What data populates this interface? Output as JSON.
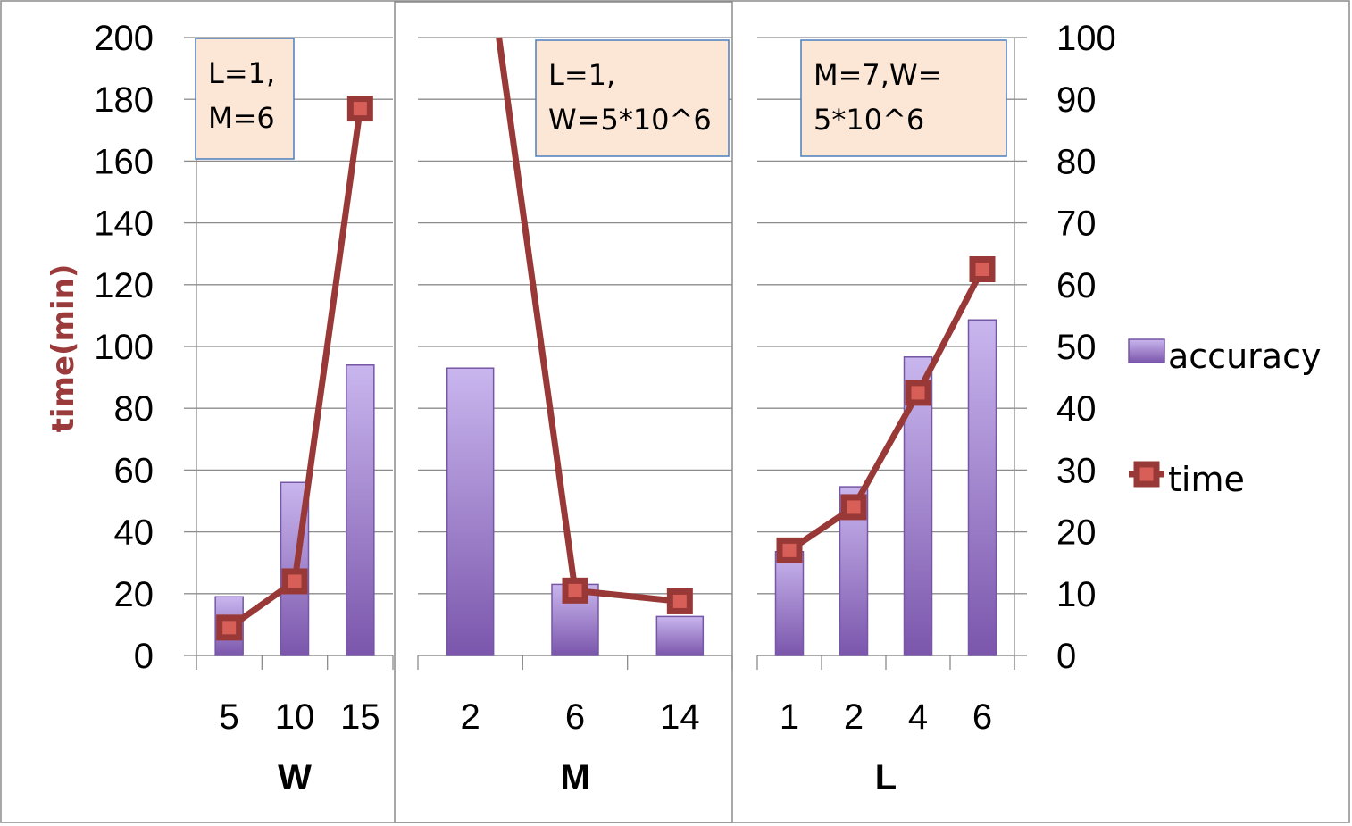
{
  "colors": {
    "bar_top": "#c9b6ee",
    "bar_bottom": "#7b56ac",
    "bar_stroke": "#7557a5",
    "line": "#983937",
    "marker_fill": "#d85f58",
    "annotation_fill": "#fce7d7",
    "annotation_stroke": "#4a7ebb",
    "ylabel": "#9b3a3a"
  },
  "chart_data": [
    {
      "type": "bar+line",
      "xlabel": "W",
      "categories": [
        "5",
        "10",
        "15"
      ],
      "annotation": [
        "L=1,",
        "M=6"
      ],
      "series": [
        {
          "name": "accuracy",
          "type": "bar",
          "axis": "right",
          "values": [
            9.5,
            28,
            47
          ]
        },
        {
          "name": "time",
          "type": "line",
          "axis": "left",
          "values": [
            9,
            24,
            177
          ]
        }
      ]
    },
    {
      "type": "bar+line",
      "xlabel": "M",
      "categories": [
        "2",
        "6",
        "14"
      ],
      "annotation": [
        "L=1,",
        "W=5*10^6"
      ],
      "series": [
        {
          "name": "accuracy",
          "type": "bar",
          "axis": "right",
          "values": [
            46.5,
            11.5,
            6.3
          ]
        },
        {
          "name": "time",
          "type": "line",
          "axis": "left",
          "values": [
            null,
            21,
            17.5
          ],
          "note": "line enters from above the 200 min top at category 2"
        }
      ]
    },
    {
      "type": "bar+line",
      "xlabel": "L",
      "categories": [
        "1",
        "2",
        "4",
        "6"
      ],
      "annotation": [
        "M=7,W=",
        "5*10^6"
      ],
      "series": [
        {
          "name": "accuracy",
          "type": "bar",
          "axis": "right",
          "values": [
            16.8,
            27.3,
            48.3,
            54.3
          ]
        },
        {
          "name": "time",
          "type": "line",
          "axis": "left",
          "values": [
            34,
            48,
            85,
            125
          ]
        }
      ]
    }
  ],
  "axes": {
    "left": {
      "label": "time(min)",
      "ylim": [
        0,
        200
      ],
      "ticks": [
        "0",
        "20",
        "40",
        "60",
        "80",
        "100",
        "120",
        "140",
        "160",
        "180",
        "200"
      ]
    },
    "right": {
      "ylim": [
        0,
        100
      ],
      "ticks": [
        "0",
        "10",
        "20",
        "30",
        "40",
        "50",
        "60",
        "70",
        "80",
        "90",
        "100"
      ]
    },
    "grid": true
  },
  "legend": {
    "position": "right",
    "items": [
      {
        "label": "accuracy",
        "kind": "bar"
      },
      {
        "label": "time",
        "kind": "line-marker"
      }
    ]
  }
}
